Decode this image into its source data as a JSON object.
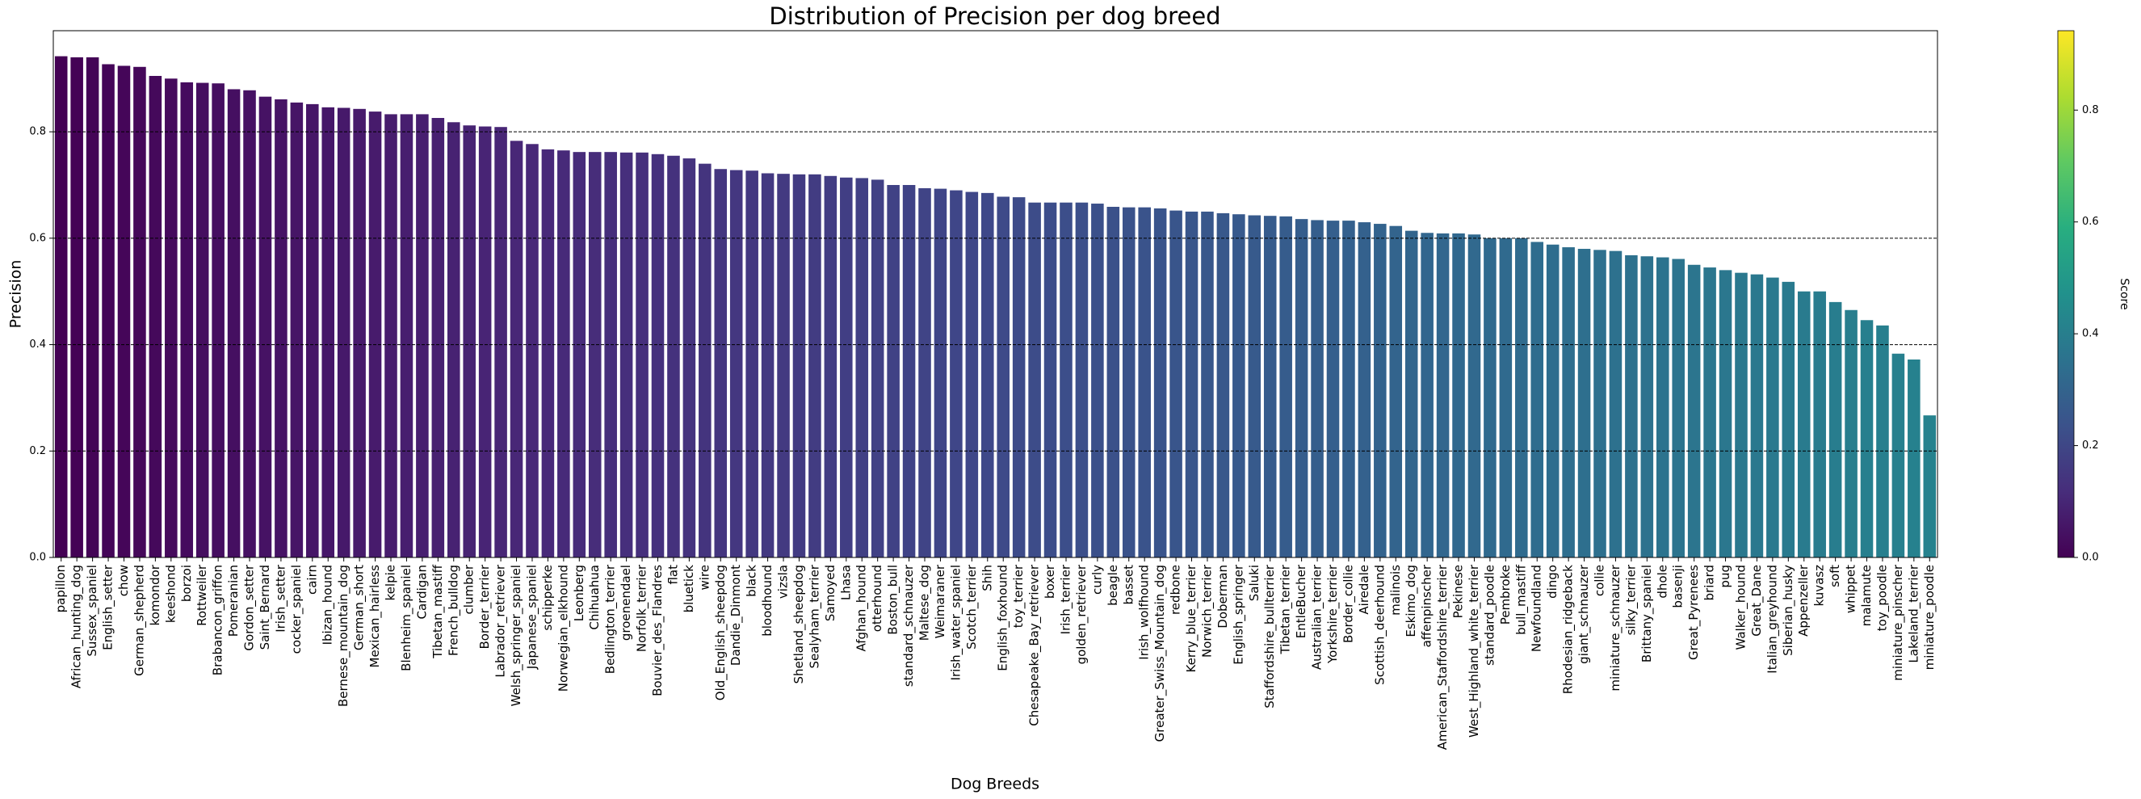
{
  "chart_data": {
    "type": "bar",
    "title": "Distribution of Precision per dog breed",
    "x_label": "Dog Breeds",
    "y_label": "Precision",
    "categories": [
      "papillon",
      "African_hunting_dog",
      "Sussex_spaniel",
      "English_setter",
      "chow",
      "German_shepherd",
      "komondor",
      "keeshond",
      "borzoi",
      "Rottweiler",
      "Brabancon_griffon",
      "Pomeranian",
      "Gordon_setter",
      "Saint_Bernard",
      "Irish_setter",
      "cocker_spaniel",
      "cairn",
      "Ibizan_hound",
      "Bernese_mountain_dog",
      "German_short",
      "Mexican_hairless",
      "kelpie",
      "Blenheim_spaniel",
      "Cardigan",
      "Tibetan_mastiff",
      "French_bulldog",
      "clumber",
      "Border_terrier",
      "Labrador_retriever",
      "Welsh_springer_spaniel",
      "Japanese_spaniel",
      "schipperke",
      "Norwegian_elkhound",
      "Leonberg",
      "Chihuahua",
      "Bedlington_terrier",
      "groenendael",
      "Norfolk_terrier",
      "Bouvier_des_Flandres",
      "flat",
      "bluetick",
      "wire",
      "Old_English_sheepdog",
      "Dandie_Dinmont",
      "black",
      "bloodhound",
      "vizsla",
      "Shetland_sheepdog",
      "Sealyham_terrier",
      "Samoyed",
      "Lhasa",
      "Afghan_hound",
      "otterhound",
      "Boston_bull",
      "standard_schnauzer",
      "Maltese_dog",
      "Weimaraner",
      "Irish_water_spaniel",
      "Scotch_terrier",
      "Shih",
      "English_foxhound",
      "toy_terrier",
      "Chesapeake_Bay_retriever",
      "boxer",
      "Irish_terrier",
      "golden_retriever",
      "curly",
      "beagle",
      "basset",
      "Irish_wolfhound",
      "Greater_Swiss_Mountain_dog",
      "redbone",
      "Kerry_blue_terrier",
      "Norwich_terrier",
      "Doberman",
      "English_springer",
      "Saluki",
      "Staffordshire_bullterrier",
      "Tibetan_terrier",
      "EntleBucher",
      "Australian_terrier",
      "Yorkshire_terrier",
      "Border_collie",
      "Airedale",
      "Scottish_deerhound",
      "malinois",
      "Eskimo_dog",
      "affenpinscher",
      "American_Staffordshire_terrier",
      "Pekinese",
      "West_Highland_white_terrier",
      "standard_poodle",
      "Pembroke",
      "bull_mastiff",
      "Newfoundland",
      "dingo",
      "Rhodesian_ridgeback",
      "giant_schnauzer",
      "collie",
      "miniature_schnauzer",
      "silky_terrier",
      "Brittany_spaniel",
      "dhole",
      "basenji",
      "Great_Pyrenees",
      "briard",
      "pug",
      "Walker_hound",
      "Great_Dane",
      "Italian_greyhound",
      "Siberian_husky",
      "Appenzeller",
      "kuvasz",
      "soft",
      "whippet",
      "malamute",
      "toy_poodle",
      "miniature_pinscher",
      "Lakeland_terrier",
      "miniature_poodle"
    ],
    "values": [
      0.942,
      0.94,
      0.94,
      0.927,
      0.924,
      0.922,
      0.905,
      0.9,
      0.893,
      0.892,
      0.891,
      0.88,
      0.878,
      0.866,
      0.861,
      0.855,
      0.852,
      0.846,
      0.845,
      0.843,
      0.838,
      0.833,
      0.833,
      0.833,
      0.826,
      0.818,
      0.812,
      0.81,
      0.809,
      0.783,
      0.777,
      0.767,
      0.765,
      0.762,
      0.762,
      0.762,
      0.761,
      0.761,
      0.758,
      0.755,
      0.75,
      0.74,
      0.73,
      0.728,
      0.727,
      0.722,
      0.721,
      0.72,
      0.72,
      0.717,
      0.714,
      0.713,
      0.71,
      0.7,
      0.7,
      0.694,
      0.693,
      0.69,
      0.687,
      0.685,
      0.678,
      0.677,
      0.667,
      0.667,
      0.667,
      0.667,
      0.665,
      0.659,
      0.658,
      0.658,
      0.656,
      0.652,
      0.65,
      0.65,
      0.647,
      0.645,
      0.643,
      0.642,
      0.641,
      0.636,
      0.634,
      0.633,
      0.633,
      0.63,
      0.627,
      0.623,
      0.614,
      0.61,
      0.609,
      0.609,
      0.607,
      0.6,
      0.6,
      0.6,
      0.593,
      0.588,
      0.583,
      0.58,
      0.578,
      0.576,
      0.568,
      0.566,
      0.564,
      0.561,
      0.55,
      0.545,
      0.54,
      0.535,
      0.532,
      0.526,
      0.518,
      0.5,
      0.5,
      0.48,
      0.465,
      0.446,
      0.436,
      0.383,
      0.372,
      0.267
    ],
    "bar_colors": [
      "#440154",
      "#482878",
      "#3e4989",
      "#31688e",
      "#26828e"
    ],
    "ylim": [
      0,
      0.99
    ],
    "yticks": [
      {
        "value": 0,
        "label": "0.0"
      },
      0.2,
      0.4,
      0.6,
      0.8
    ],
    "grid": true,
    "grid_style": "dashed",
    "colorbar": {
      "label": "Score",
      "clim": [
        0,
        0.942
      ],
      "ticks": [
        {
          "value": 0,
          "label": "0.0"
        },
        0.2,
        0.4,
        0.6,
        0.8
      ],
      "colors": [
        "#440154",
        "#472d7b",
        "#3b528b",
        "#2c728e",
        "#21918c",
        "#28ae80",
        "#5ec962",
        "#addc30",
        "#fde725"
      ]
    }
  }
}
